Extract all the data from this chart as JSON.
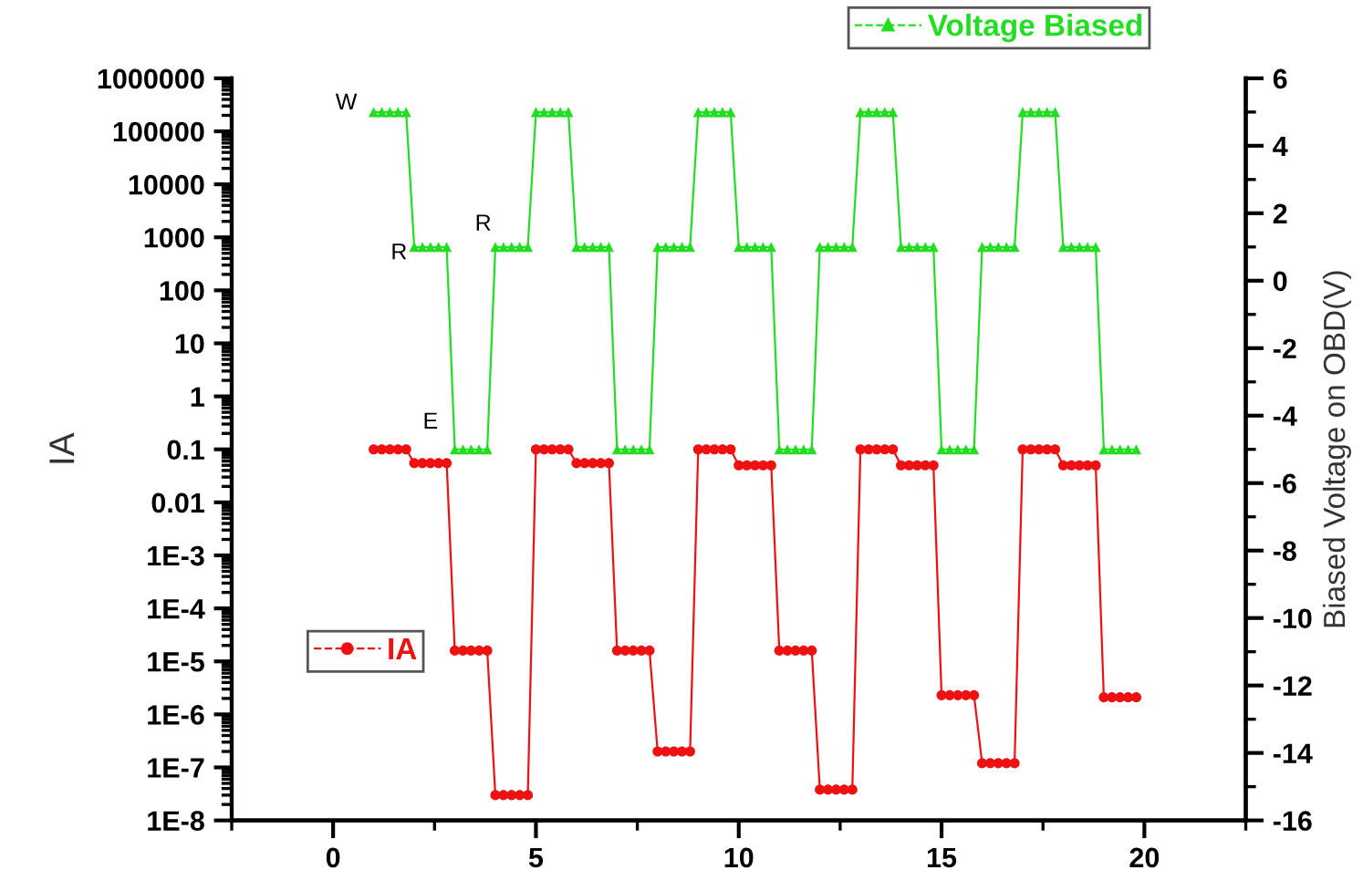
{
  "chart_data": {
    "type": "line",
    "xlim": [
      -2.5,
      22.5
    ],
    "xticks": [
      0,
      5,
      10,
      15,
      20
    ],
    "ylim": [
      1e-08,
      1000000
    ],
    "log": "y",
    "yticks": [
      {
        "value": 1000000,
        "label": "1000000"
      },
      {
        "value": 100000,
        "label": "100000"
      },
      {
        "value": 10000,
        "label": "10000"
      },
      {
        "value": 1000,
        "label": "1000"
      },
      {
        "value": 100,
        "label": "100"
      },
      {
        "value": 10,
        "label": "10"
      },
      {
        "value": 1,
        "label": "1"
      },
      {
        "value": 0.1,
        "label": "0.1"
      },
      {
        "value": 0.01,
        "label": "0.01"
      },
      {
        "value": 0.001,
        "label": "1E-3"
      },
      {
        "value": 0.0001,
        "label": "1E-4"
      },
      {
        "value": 1e-05,
        "label": "1E-5"
      },
      {
        "value": 1e-06,
        "label": "1E-6"
      },
      {
        "value": 1e-07,
        "label": "1E-7"
      },
      {
        "value": 1e-08,
        "label": "1E-8"
      }
    ],
    "y2lim": [
      -16,
      6
    ],
    "y2ticks": [
      -16,
      -14,
      -12,
      -10,
      -8,
      -6,
      -4,
      -2,
      0,
      2,
      4,
      6
    ],
    "ylabel": "IA",
    "y2label": "Biased Voltage on OBD(V)",
    "grid": false,
    "legend": "top right",
    "line_style": "solid",
    "annotations": [
      "W",
      "R",
      "E",
      "R"
    ],
    "x": [
      1,
      1.2,
      1.4,
      1.6,
      1.8,
      2,
      2.2,
      2.4,
      2.6,
      2.8,
      3,
      3.2,
      3.4,
      3.6,
      3.8,
      4,
      4.2,
      4.4,
      4.6,
      4.8,
      5,
      5.2,
      5.4,
      5.6,
      5.8,
      6,
      6.2,
      6.4,
      6.6,
      6.8,
      7,
      7.2,
      7.4,
      7.6,
      7.8,
      8,
      8.2,
      8.4,
      8.6,
      8.8,
      9,
      9.2,
      9.4,
      9.6,
      9.8,
      10,
      10.2,
      10.4,
      10.6,
      10.8,
      11,
      11.2,
      11.4,
      11.6,
      11.8,
      12,
      12.2,
      12.4,
      12.6,
      12.8,
      13,
      13.2,
      13.4,
      13.6,
      13.8,
      14,
      14.2,
      14.4,
      14.6,
      14.8,
      15,
      15.2,
      15.4,
      15.6,
      15.8,
      16,
      16.2,
      16.4,
      16.6,
      16.8,
      17,
      17.2,
      17.4,
      17.6,
      17.8,
      18,
      18.2,
      18.4,
      18.6,
      18.8,
      19,
      19.2,
      19.4,
      19.6,
      19.8
    ],
    "series": [
      {
        "name": "IA",
        "color": "#ee1111",
        "marker": "circle",
        "values": [
          0.1,
          0.1,
          0.1,
          0.1,
          0.1,
          0.055,
          0.055,
          0.055,
          0.055,
          0.055,
          1.6e-05,
          1.6e-05,
          1.6e-05,
          1.6e-05,
          1.6e-05,
          3e-08,
          3e-08,
          3e-08,
          3e-08,
          3e-08,
          0.1,
          0.1,
          0.1,
          0.1,
          0.1,
          0.055,
          0.055,
          0.055,
          0.055,
          0.055,
          1.6e-05,
          1.6e-05,
          1.6e-05,
          1.6e-05,
          1.6e-05,
          2e-07,
          2e-07,
          2e-07,
          2e-07,
          2e-07,
          0.1,
          0.1,
          0.1,
          0.1,
          0.1,
          0.05,
          0.05,
          0.05,
          0.05,
          0.05,
          1.6e-05,
          1.6e-05,
          1.6e-05,
          1.6e-05,
          1.6e-05,
          3.8e-08,
          3.8e-08,
          3.8e-08,
          3.8e-08,
          3.8e-08,
          0.1,
          0.1,
          0.1,
          0.1,
          0.1,
          0.05,
          0.05,
          0.05,
          0.05,
          0.05,
          2.3e-06,
          2.3e-06,
          2.3e-06,
          2.3e-06,
          2.3e-06,
          1.2e-07,
          1.2e-07,
          1.2e-07,
          1.2e-07,
          1.2e-07,
          0.1,
          0.1,
          0.1,
          0.1,
          0.1,
          0.05,
          0.05,
          0.05,
          0.05,
          0.05,
          2.1e-06,
          2.1e-06,
          2.1e-06,
          2.1e-06,
          2.1e-06
        ]
      },
      {
        "name": "Voltage Biased",
        "color": "#22dd22",
        "marker": "triangle",
        "axis": "y2",
        "values": [
          5,
          5,
          5,
          5,
          5,
          1,
          1,
          1,
          1,
          1,
          -5,
          -5,
          -5,
          -5,
          -5,
          1,
          1,
          1,
          1,
          1,
          5,
          5,
          5,
          5,
          5,
          1,
          1,
          1,
          1,
          1,
          -5,
          -5,
          -5,
          -5,
          -5,
          1,
          1,
          1,
          1,
          1,
          5,
          5,
          5,
          5,
          5,
          1,
          1,
          1,
          1,
          1,
          -5,
          -5,
          -5,
          -5,
          -5,
          1,
          1,
          1,
          1,
          1,
          5,
          5,
          5,
          5,
          5,
          1,
          1,
          1,
          1,
          1,
          -5,
          -5,
          -5,
          -5,
          -5,
          1,
          1,
          1,
          1,
          1,
          5,
          5,
          5,
          5,
          5,
          1,
          1,
          1,
          1,
          1,
          -5,
          -5,
          -5,
          -5,
          -5
        ]
      }
    ]
  }
}
